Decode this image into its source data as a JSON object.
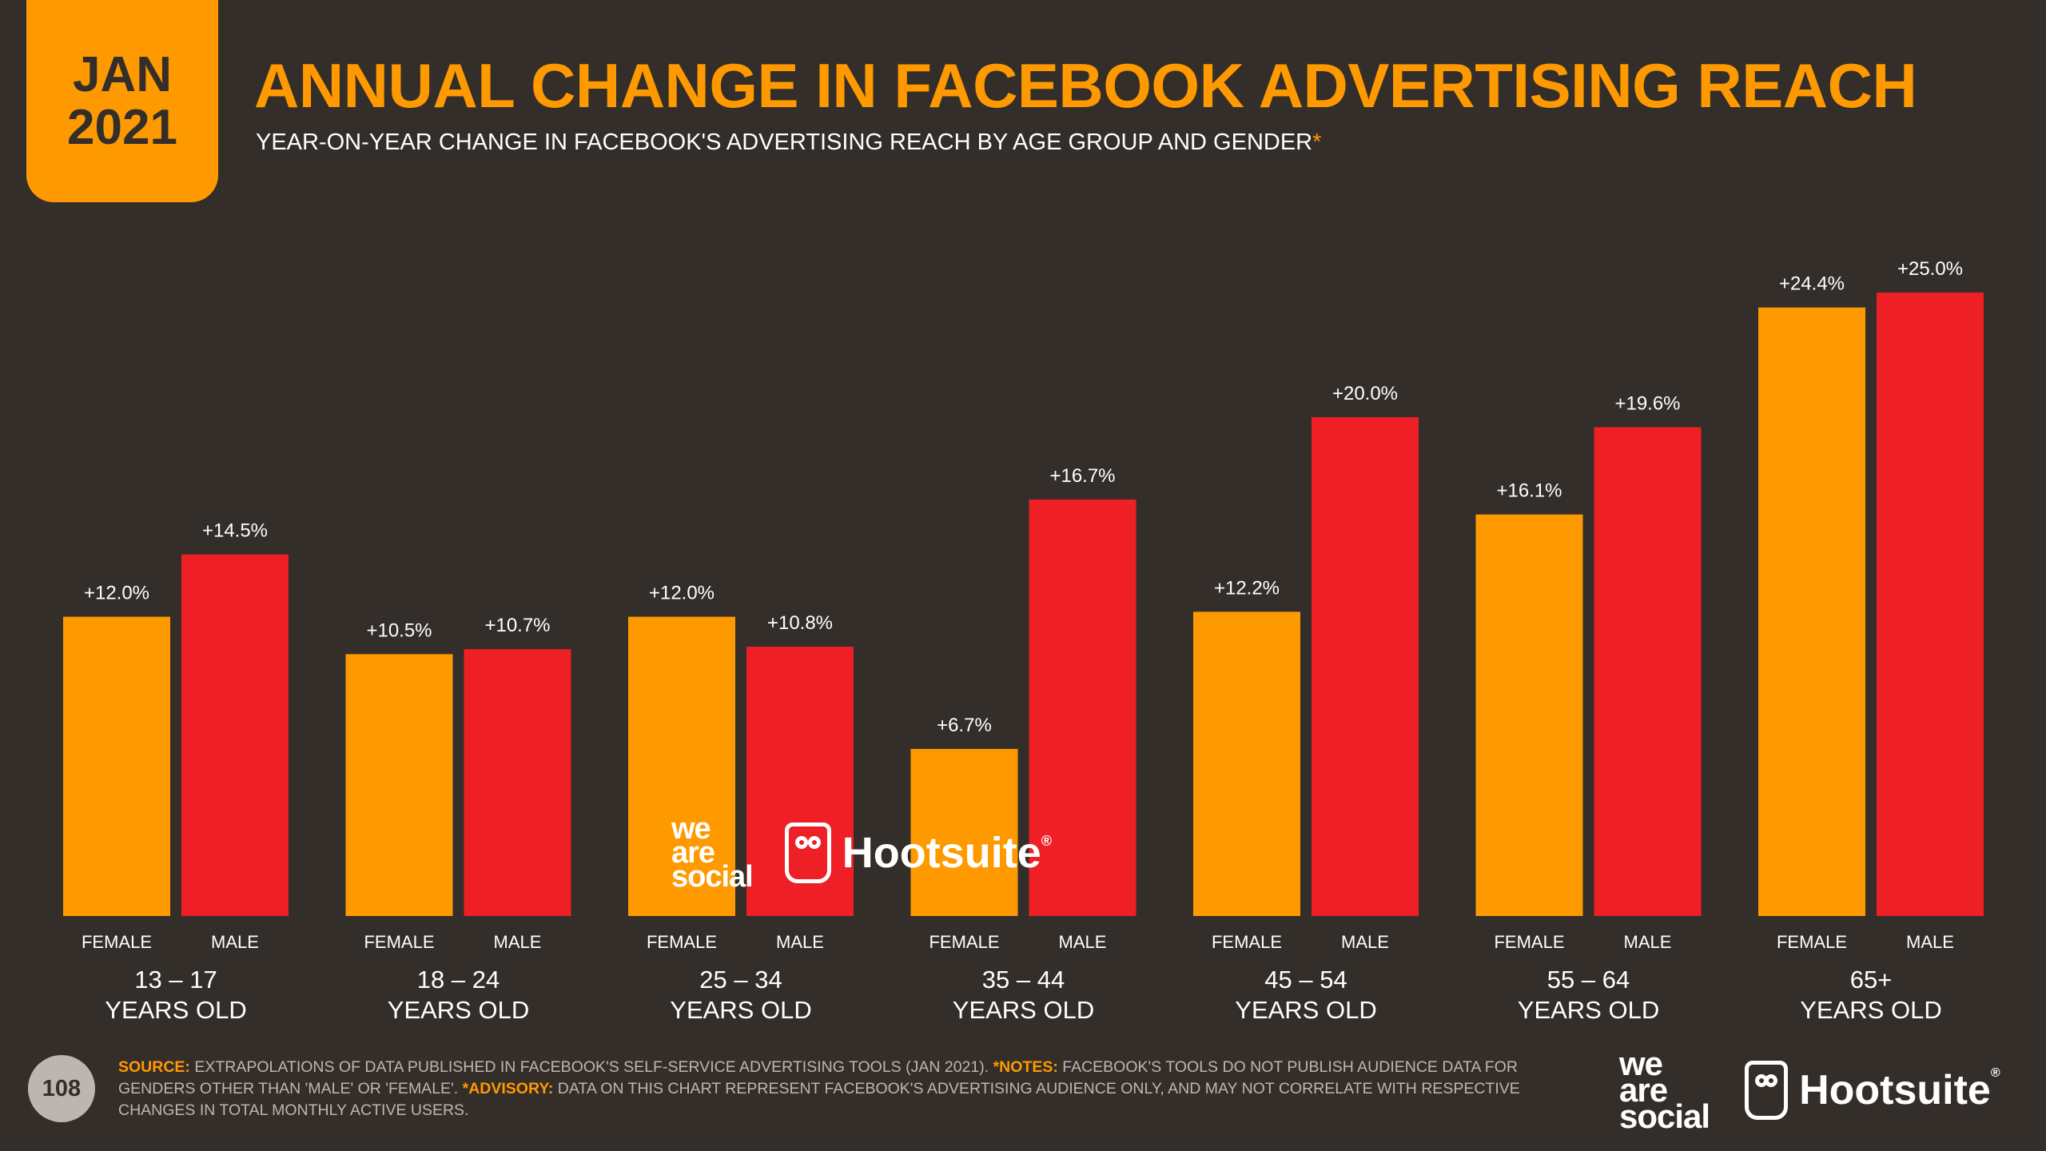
{
  "header": {
    "badge_month": "JAN",
    "badge_year": "2021",
    "title": "ANNUAL CHANGE IN FACEBOOK ADVERTISING REACH",
    "subtitle": "YEAR-ON-YEAR CHANGE IN FACEBOOK'S ADVERTISING REACH BY AGE GROUP AND GENDER",
    "subtitle_asterisk": "*"
  },
  "chart_data": {
    "type": "bar",
    "title": "ANNUAL CHANGE IN FACEBOOK ADVERTISING REACH",
    "xlabel": "",
    "ylabel": "",
    "ylim": [
      0,
      25
    ],
    "grid": false,
    "categories": [
      {
        "range": "13 – 17",
        "label": "YEARS OLD"
      },
      {
        "range": "18 – 24",
        "label": "YEARS OLD"
      },
      {
        "range": "25 – 34",
        "label": "YEARS OLD"
      },
      {
        "range": "35 – 44",
        "label": "YEARS OLD"
      },
      {
        "range": "45 – 54",
        "label": "YEARS OLD"
      },
      {
        "range": "55 – 64",
        "label": "YEARS OLD"
      },
      {
        "range": "65+",
        "label": "YEARS OLD"
      }
    ],
    "series": [
      {
        "name": "FEMALE",
        "color": "#ff9900",
        "values": [
          12.0,
          10.5,
          12.0,
          6.7,
          12.2,
          16.1,
          24.4
        ],
        "labels": [
          "+12.0%",
          "+10.5%",
          "+12.0%",
          "+6.7%",
          "+12.2%",
          "+16.1%",
          "+24.4%"
        ]
      },
      {
        "name": "MALE",
        "color": "#ee1f25",
        "values": [
          14.5,
          10.7,
          10.8,
          16.7,
          20.0,
          19.6,
          25.0
        ],
        "labels": [
          "+14.5%",
          "+10.7%",
          "+10.8%",
          "+16.7%",
          "+20.0%",
          "+19.6%",
          "+25.0%"
        ]
      }
    ]
  },
  "watermark": {
    "we_are_social": [
      "we",
      "are",
      "social"
    ],
    "hootsuite": "Hootsuite",
    "registered": "®"
  },
  "footer": {
    "page_number": "108",
    "source_label": "SOURCE:",
    "source_text": " EXTRAPOLATIONS OF DATA PUBLISHED IN FACEBOOK'S SELF-SERVICE ADVERTISING TOOLS (JAN 2021). ",
    "notes_label": "*NOTES:",
    "notes_text": " FACEBOOK'S TOOLS DO NOT PUBLISH AUDIENCE DATA FOR GENDERS OTHER THAN 'MALE' OR 'FEMALE'. ",
    "advisory_label": "*ADVISORY:",
    "advisory_text": " DATA ON THIS CHART REPRESENT FACEBOOK'S ADVERTISING AUDIENCE ONLY, AND MAY NOT CORRELATE WITH RESPECTIVE CHANGES IN TOTAL MONTHLY ACTIVE USERS."
  },
  "colors": {
    "background": "#342e2a",
    "accent": "#ff9900",
    "male": "#ee1f25",
    "muted": "#bdb6b0"
  }
}
